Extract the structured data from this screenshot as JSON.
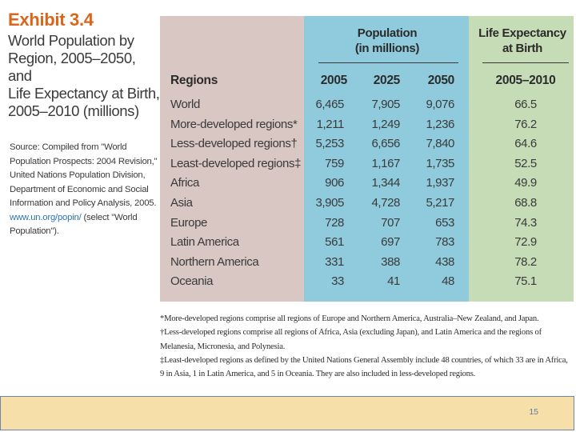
{
  "exhibit": {
    "number": "Exhibit 3.4",
    "title_lines": [
      "World Population by",
      "Region, 2005–2050, and",
      "Life Expectancy at Birth,",
      "2005–2010 (millions)"
    ],
    "source_lines": [
      "Source: Compiled from \"World",
      "Population Prospects: 2004 Revision,\"",
      "United Nations Population Division,",
      "Department of Economic and Social",
      "Information and Policy Analysis, 2005.",
      "(select \"World",
      "Population\")."
    ],
    "source_link": "www.un.org/popin/"
  },
  "table": {
    "group_population": [
      "Population",
      "(in millions)"
    ],
    "group_life": [
      "Life Expectancy",
      "at Birth"
    ],
    "col_regions": "Regions",
    "col_2005": "2005",
    "col_2025": "2025",
    "col_2050": "2050",
    "col_life": "2005–2010",
    "rows": [
      {
        "region": "World",
        "v2005": "6,465",
        "v2025": "7,905",
        "v2050": "9,076",
        "life": "66.5"
      },
      {
        "region": "More-developed regions*",
        "v2005": "1,211",
        "v2025": "1,249",
        "v2050": "1,236",
        "life": "76.2"
      },
      {
        "region": "Less-developed regions†",
        "v2005": "5,253",
        "v2025": "6,656",
        "v2050": "7,840",
        "life": "64.6"
      },
      {
        "region": "Least-developed regions‡",
        "v2005": "759",
        "v2025": "1,167",
        "v2050": "1,735",
        "life": "52.5"
      },
      {
        "region": "Africa",
        "v2005": "906",
        "v2025": "1,344",
        "v2050": "1,937",
        "life": "49.9"
      },
      {
        "region": "Asia",
        "v2005": "3,905",
        "v2025": "4,728",
        "v2050": "5,217",
        "life": "68.8"
      },
      {
        "region": "Europe",
        "v2005": "728",
        "v2025": "707",
        "v2050": "653",
        "life": "74.3"
      },
      {
        "region": "Latin America",
        "v2005": "561",
        "v2025": "697",
        "v2050": "783",
        "life": "72.9"
      },
      {
        "region": "Northern America",
        "v2005": "331",
        "v2025": "388",
        "v2050": "438",
        "life": "78.2"
      },
      {
        "region": "Oceania",
        "v2005": "33",
        "v2025": "41",
        "v2050": "48",
        "life": "75.1"
      }
    ]
  },
  "footnotes": {
    "note1": "*More-developed regions comprise all regions of Europe and Northern America, Australia–New Zealand, and Japan.",
    "note2_a": "†Less-developed regions comprise all regions of Africa, Asia (excluding Japan), and Latin America and the regions of",
    "note2_b": "Melanesia, Micronesia, and Polynesia.",
    "note3_a": "‡Least-developed regions as defined by the United Nations General Assembly include 48 countries, of which 33 are in Africa,",
    "note3_b": "9 in Asia, 1 in Latin America, and 5 in Oceania. They are also included in less-developed regions."
  },
  "footer": {
    "page_number": "15"
  },
  "colors": {
    "accent_orange": "#d9661a",
    "regions_band": "#d9c7c4",
    "population_band": "#8fcbdc",
    "life_band": "#c5dcb6",
    "footer_bg": "#f6dfa9"
  }
}
